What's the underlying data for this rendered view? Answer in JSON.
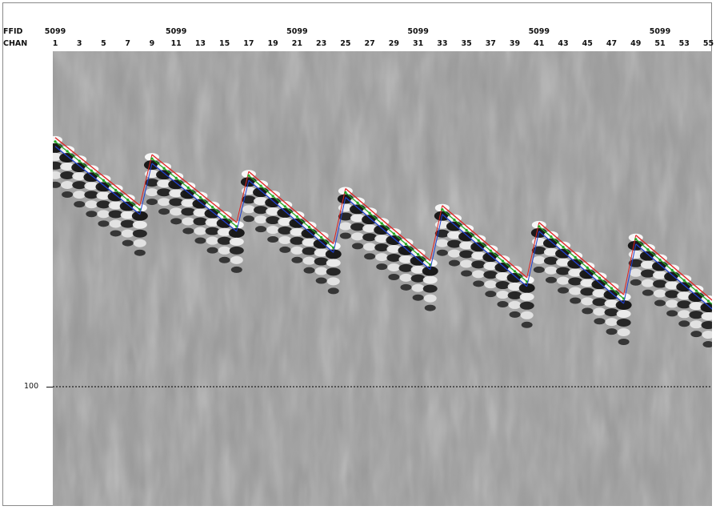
{
  "header": {
    "ffid_label": "FFID",
    "chan_label": "CHAN",
    "ffid_values": [
      "5099",
      "5099",
      "5099",
      "5099",
      "5099",
      "5099"
    ],
    "chan_ticks": [
      "1",
      "3",
      "5",
      "7",
      "9",
      "11",
      "13",
      "15",
      "17",
      "19",
      "21",
      "23",
      "25",
      "27",
      "29",
      "31",
      "33",
      "35",
      "37",
      "39",
      "41",
      "43",
      "45",
      "47",
      "49",
      "51",
      "53",
      "55"
    ]
  },
  "axis": {
    "y_tick_label": "100",
    "y_tick_value": 100
  },
  "chart_data": {
    "type": "heatmap",
    "title": "",
    "xlabel": "CHAN",
    "ylabel": "",
    "x_range": [
      1,
      56
    ],
    "reference_line": {
      "y": 100,
      "style": "dotted",
      "color": "#000000"
    },
    "colormap": "grayscale (variable-density seismic)",
    "picks": {
      "segments": [
        {
          "channels": [
            1,
            8
          ],
          "y_start": 43,
          "y_end": 59
        },
        {
          "channels": [
            9,
            16
          ],
          "y_start": 47,
          "y_end": 63
        },
        {
          "channels": [
            17,
            24
          ],
          "y_start": 51,
          "y_end": 68
        },
        {
          "channels": [
            25,
            32
          ],
          "y_start": 55,
          "y_end": 72
        },
        {
          "channels": [
            33,
            40
          ],
          "y_start": 59,
          "y_end": 76
        },
        {
          "channels": [
            41,
            48
          ],
          "y_start": 63,
          "y_end": 80
        },
        {
          "channels": [
            49,
            56
          ],
          "y_start": 66,
          "y_end": 83
        }
      ],
      "line_colors": {
        "red": "#e02020",
        "green": "#22aa22",
        "blue": "#2040d0"
      }
    }
  }
}
